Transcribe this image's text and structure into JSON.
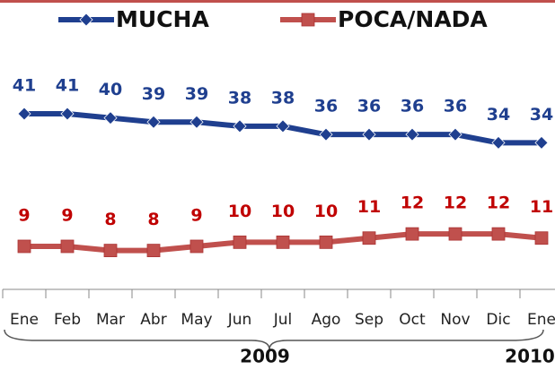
{
  "chart_data": {
    "type": "line",
    "categories": [
      "Ene",
      "Feb",
      "Mar",
      "Abr",
      "May",
      "Jun",
      "Jul",
      "Ago",
      "Sep",
      "Oct",
      "Nov",
      "Dic",
      "Ene"
    ],
    "series": [
      {
        "name": "MUCHA",
        "color": "#1f3f8f",
        "label_color": "#1f3f8f",
        "marker": "diamond",
        "values": [
          41,
          41,
          40,
          39,
          39,
          38,
          38,
          36,
          36,
          36,
          36,
          34,
          34
        ]
      },
      {
        "name": "POCA/NADA",
        "color": "#c0504d",
        "label_color": "#c00000",
        "marker": "square",
        "values": [
          9,
          9,
          8,
          8,
          9,
          10,
          10,
          10,
          11,
          12,
          12,
          12,
          11
        ]
      }
    ],
    "ylim": [
      0,
      50
    ],
    "annotations": [
      "2009",
      "2010"
    ]
  }
}
